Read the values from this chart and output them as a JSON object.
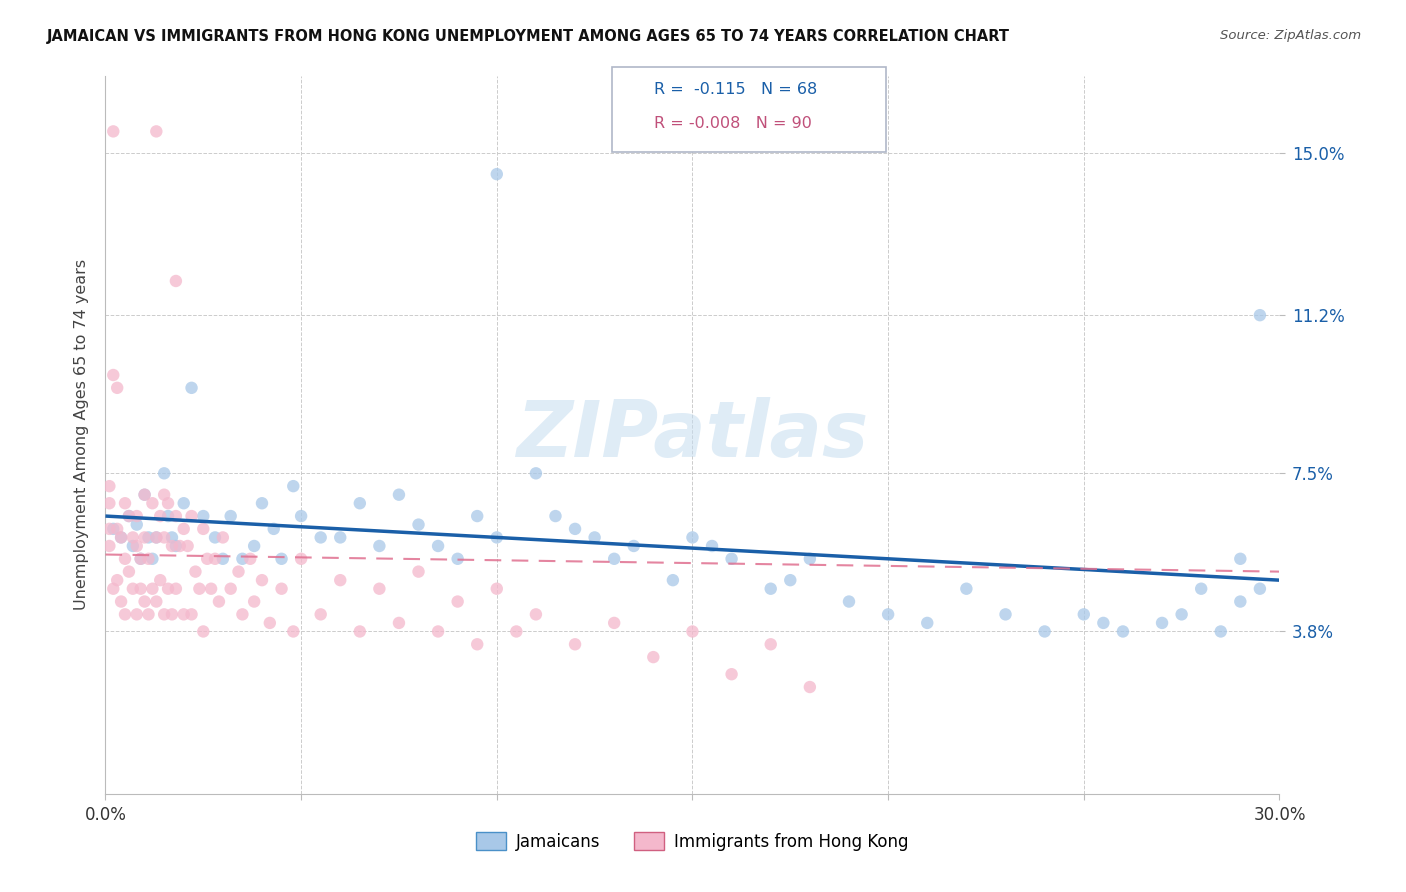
{
  "title": "JAMAICAN VS IMMIGRANTS FROM HONG KONG UNEMPLOYMENT AMONG AGES 65 TO 74 YEARS CORRELATION CHART",
  "source": "Source: ZipAtlas.com",
  "ylabel": "Unemployment Among Ages 65 to 74 years",
  "ytick_values": [
    0.038,
    0.075,
    0.112,
    0.15
  ],
  "ytick_labels": [
    "3.8%",
    "7.5%",
    "11.2%",
    "15.0%"
  ],
  "xmin": 0.0,
  "xmax": 0.3,
  "ymin": 0.0,
  "ymax": 0.168,
  "blue_color": "#a8c8e8",
  "pink_color": "#f4b8cc",
  "blue_line_color": "#1a5fa8",
  "pink_line_color": "#e07090",
  "legend_label1": "Jamaicans",
  "legend_label2": "Immigrants from Hong Kong",
  "R1": "-0.115",
  "N1": "68",
  "R2": "-0.008",
  "N2": "90",
  "blue_trend_x0": 0.0,
  "blue_trend_y0": 0.065,
  "blue_trend_x1": 0.3,
  "blue_trend_y1": 0.05,
  "pink_trend_x0": 0.0,
  "pink_trend_y0": 0.056,
  "pink_trend_x1": 0.3,
  "pink_trend_y1": 0.052,
  "jamaicans_x": [
    0.002,
    0.004,
    0.006,
    0.007,
    0.008,
    0.009,
    0.01,
    0.011,
    0.012,
    0.013,
    0.015,
    0.016,
    0.017,
    0.018,
    0.02,
    0.022,
    0.025,
    0.028,
    0.03,
    0.032,
    0.035,
    0.038,
    0.04,
    0.043,
    0.045,
    0.048,
    0.05,
    0.055,
    0.06,
    0.065,
    0.07,
    0.075,
    0.08,
    0.085,
    0.09,
    0.095,
    0.1,
    0.11,
    0.115,
    0.12,
    0.125,
    0.13,
    0.135,
    0.145,
    0.15,
    0.155,
    0.16,
    0.17,
    0.175,
    0.18,
    0.19,
    0.2,
    0.21,
    0.22,
    0.23,
    0.24,
    0.25,
    0.255,
    0.26,
    0.27,
    0.275,
    0.28,
    0.285,
    0.29,
    0.295,
    0.295,
    0.29,
    0.1
  ],
  "jamaicans_y": [
    0.062,
    0.06,
    0.065,
    0.058,
    0.063,
    0.055,
    0.07,
    0.06,
    0.055,
    0.06,
    0.075,
    0.065,
    0.06,
    0.058,
    0.068,
    0.095,
    0.065,
    0.06,
    0.055,
    0.065,
    0.055,
    0.058,
    0.068,
    0.062,
    0.055,
    0.072,
    0.065,
    0.06,
    0.06,
    0.068,
    0.058,
    0.07,
    0.063,
    0.058,
    0.055,
    0.065,
    0.06,
    0.075,
    0.065,
    0.062,
    0.06,
    0.055,
    0.058,
    0.05,
    0.06,
    0.058,
    0.055,
    0.048,
    0.05,
    0.055,
    0.045,
    0.042,
    0.04,
    0.048,
    0.042,
    0.038,
    0.042,
    0.04,
    0.038,
    0.04,
    0.042,
    0.048,
    0.038,
    0.055,
    0.048,
    0.112,
    0.045,
    0.145
  ],
  "hk_x": [
    0.001,
    0.002,
    0.002,
    0.003,
    0.003,
    0.004,
    0.004,
    0.005,
    0.005,
    0.005,
    0.006,
    0.006,
    0.007,
    0.007,
    0.008,
    0.008,
    0.008,
    0.009,
    0.009,
    0.01,
    0.01,
    0.01,
    0.011,
    0.011,
    0.012,
    0.012,
    0.013,
    0.013,
    0.014,
    0.014,
    0.015,
    0.015,
    0.015,
    0.016,
    0.016,
    0.017,
    0.017,
    0.018,
    0.018,
    0.019,
    0.02,
    0.02,
    0.021,
    0.022,
    0.022,
    0.023,
    0.024,
    0.025,
    0.025,
    0.026,
    0.027,
    0.028,
    0.029,
    0.03,
    0.032,
    0.034,
    0.035,
    0.037,
    0.038,
    0.04,
    0.042,
    0.045,
    0.048,
    0.05,
    0.055,
    0.06,
    0.065,
    0.07,
    0.075,
    0.08,
    0.085,
    0.09,
    0.095,
    0.1,
    0.105,
    0.11,
    0.12,
    0.13,
    0.14,
    0.15,
    0.16,
    0.17,
    0.18,
    0.002,
    0.003,
    0.013,
    0.018,
    0.001,
    0.001,
    0.001
  ],
  "hk_y": [
    0.058,
    0.155,
    0.048,
    0.062,
    0.05,
    0.06,
    0.045,
    0.068,
    0.055,
    0.042,
    0.065,
    0.052,
    0.06,
    0.048,
    0.065,
    0.058,
    0.042,
    0.055,
    0.048,
    0.07,
    0.06,
    0.045,
    0.055,
    0.042,
    0.068,
    0.048,
    0.06,
    0.045,
    0.065,
    0.05,
    0.07,
    0.06,
    0.042,
    0.068,
    0.048,
    0.058,
    0.042,
    0.065,
    0.048,
    0.058,
    0.062,
    0.042,
    0.058,
    0.065,
    0.042,
    0.052,
    0.048,
    0.062,
    0.038,
    0.055,
    0.048,
    0.055,
    0.045,
    0.06,
    0.048,
    0.052,
    0.042,
    0.055,
    0.045,
    0.05,
    0.04,
    0.048,
    0.038,
    0.055,
    0.042,
    0.05,
    0.038,
    0.048,
    0.04,
    0.052,
    0.038,
    0.045,
    0.035,
    0.048,
    0.038,
    0.042,
    0.035,
    0.04,
    0.032,
    0.038,
    0.028,
    0.035,
    0.025,
    0.098,
    0.095,
    0.155,
    0.12,
    0.072,
    0.068,
    0.062
  ]
}
